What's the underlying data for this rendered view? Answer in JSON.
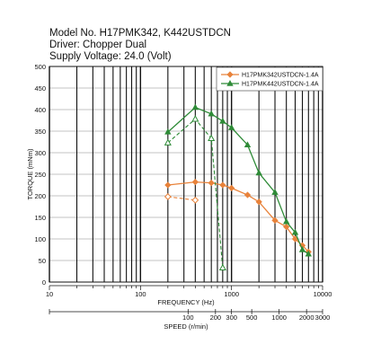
{
  "header": {
    "model": "Model No. H17PMK342, K442USTDCN",
    "driver": "Driver: Chopper Dual",
    "supply": "Supply Voltage: 24.0 (Volt)"
  },
  "chart_data": {
    "type": "line",
    "xscale": "log",
    "xlim": [
      10,
      10000
    ],
    "ylim": [
      0,
      500
    ],
    "ylabel": "TORQUE (mNm)",
    "xlabel": "FREQUENCY (Hz)",
    "x2label": "SPEED (r/min)",
    "grid": true,
    "legend_position": "top-right",
    "x_ticks": [
      "10",
      "100",
      "1000",
      "10000"
    ],
    "y_ticks": [
      "0",
      "50",
      "100",
      "150",
      "200",
      "250",
      "300",
      "350",
      "400",
      "450",
      "500"
    ],
    "speed_ticks": [
      {
        "label": "100",
        "freq": 333.3
      },
      {
        "label": "200",
        "freq": 666.7
      },
      {
        "label": "300",
        "freq": 1000
      },
      {
        "label": "500",
        "freq": 1666.7
      },
      {
        "label": "1000",
        "freq": 3333.3
      },
      {
        "label": "2000",
        "freq": 6666.7
      },
      {
        "label": "3000",
        "freq": 10000
      }
    ],
    "series": [
      {
        "name": "H17PMK342USTDCN-1.4A",
        "color": "#e8823a",
        "marker": "diamond",
        "pullout": {
          "x": [
            200,
            400,
            600,
            800,
            1000,
            1500,
            2000,
            3000,
            4000,
            5000,
            6000,
            7000
          ],
          "y": [
            225,
            232,
            230,
            225,
            218,
            202,
            186,
            143,
            128,
            100,
            85,
            70
          ]
        },
        "pullin": {
          "x": [
            200,
            400
          ],
          "y": [
            198,
            190
          ]
        }
      },
      {
        "name": "H17PMK442USTDCN-1.4A",
        "color": "#2e8b37",
        "marker": "triangle",
        "pullout": {
          "x": [
            200,
            400,
            600,
            800,
            1000,
            1500,
            2000,
            3000,
            4000,
            5000,
            6000,
            7000
          ],
          "y": [
            348,
            405,
            390,
            373,
            358,
            318,
            253,
            208,
            140,
            115,
            75,
            65
          ]
        },
        "pullin": {
          "x": [
            200,
            400,
            600,
            800
          ],
          "y": [
            323,
            378,
            333,
            33
          ]
        }
      }
    ]
  }
}
